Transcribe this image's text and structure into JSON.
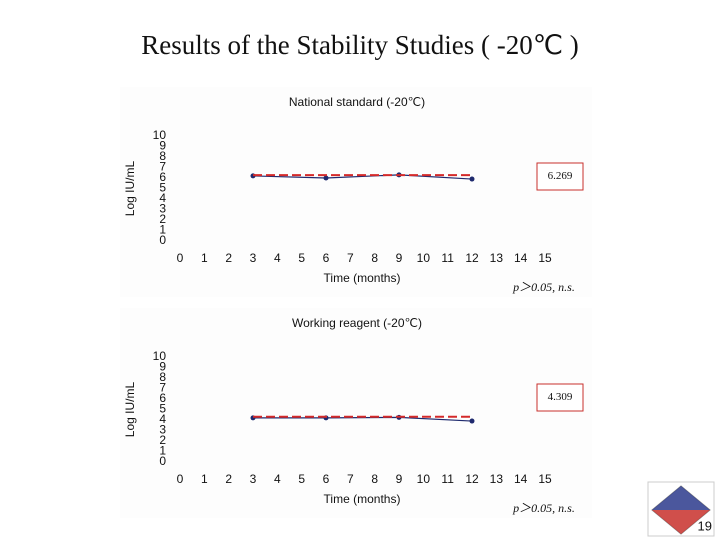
{
  "title": "Results of the Stability Studies ( -20℃ )",
  "page_number": "19",
  "chart_data": [
    {
      "type": "line",
      "title": "National standard (-20℃)",
      "xlabel": "Time (months)",
      "ylabel": "Log IU/mL",
      "x": [
        3,
        6,
        9,
        12
      ],
      "series": [
        {
          "color": "#1f2a6e",
          "values": [
            6.2,
            6.0,
            6.3,
            5.9
          ]
        },
        {
          "color": "#d42a2a",
          "values": [
            6.27,
            6.27,
            6.27,
            6.27
          ],
          "dashed": true
        }
      ],
      "xlim": [
        0,
        15
      ],
      "xticks": [
        0,
        1,
        2,
        3,
        4,
        5,
        6,
        7,
        8,
        9,
        10,
        11,
        12,
        13,
        14,
        15
      ],
      "ylim": [
        0,
        10
      ],
      "yticks": [
        0,
        1,
        2,
        3,
        4,
        5,
        6,
        7,
        8,
        9,
        10
      ],
      "annotations": [
        "6.269",
        "p＞0.05, n.s."
      ]
    },
    {
      "type": "line",
      "title": "Working reagent (-20℃)",
      "xlabel": "Time (months)",
      "ylabel": "Log IU/mL",
      "x": [
        3,
        6,
        9,
        12
      ],
      "series": [
        {
          "color": "#1f2a6e",
          "values": [
            4.2,
            4.2,
            4.25,
            3.9
          ]
        },
        {
          "color": "#d42a2a",
          "values": [
            4.31,
            4.31,
            4.31,
            4.31
          ],
          "dashed": true
        }
      ],
      "xlim": [
        0,
        15
      ],
      "xticks": [
        0,
        1,
        2,
        3,
        4,
        5,
        6,
        7,
        8,
        9,
        10,
        11,
        12,
        13,
        14,
        15
      ],
      "ylim": [
        0,
        10
      ],
      "yticks": [
        0,
        1,
        2,
        3,
        4,
        5,
        6,
        7,
        8,
        9,
        10
      ],
      "annotations": [
        "4.309",
        "p＞0.05, n.s."
      ]
    }
  ]
}
